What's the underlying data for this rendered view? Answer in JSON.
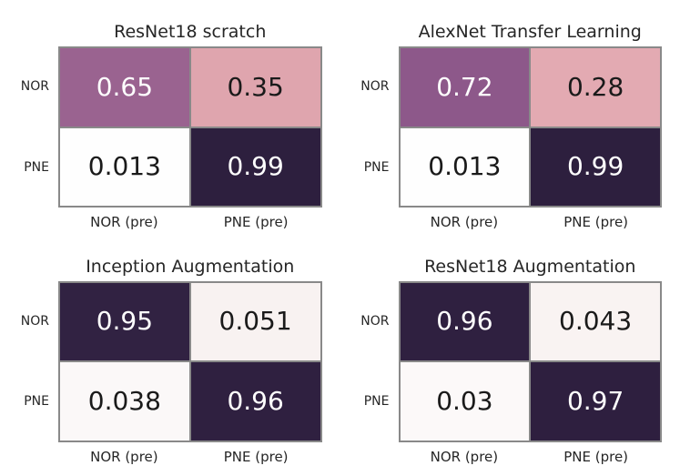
{
  "figure": {
    "background": "#ffffff",
    "grid_color": "#898989",
    "label_color": "#262626"
  },
  "chart_data": [
    {
      "type": "heatmap",
      "title": "ResNet18 scratch",
      "row_labels": [
        "NOR",
        "PNE"
      ],
      "col_labels": [
        "NOR (pre)",
        "PNE (pre)"
      ],
      "values": [
        [
          0.65,
          0.35
        ],
        [
          0.013,
          0.99
        ]
      ],
      "cells": [
        [
          {
            "label": "0.65",
            "bg": "#9a6390",
            "fg": "#ffffff"
          },
          {
            "label": "0.35",
            "bg": "#dfa5ae",
            "fg": "#1a1a1a"
          }
        ],
        [
          {
            "label": "0.013",
            "bg": "#fefefe",
            "fg": "#1a1a1a"
          },
          {
            "label": "0.99",
            "bg": "#2d1f3e",
            "fg": "#ffffff"
          }
        ]
      ]
    },
    {
      "type": "heatmap",
      "title": "AlexNet Transfer Learning",
      "row_labels": [
        "NOR",
        "PNE"
      ],
      "col_labels": [
        "NOR (pre)",
        "PNE (pre)"
      ],
      "values": [
        [
          0.72,
          0.28
        ],
        [
          0.013,
          0.99
        ]
      ],
      "cells": [
        [
          {
            "label": "0.72",
            "bg": "#8d588a",
            "fg": "#ffffff"
          },
          {
            "label": "0.28",
            "bg": "#e3aab2",
            "fg": "#1a1a1a"
          }
        ],
        [
          {
            "label": "0.013",
            "bg": "#fefefe",
            "fg": "#1a1a1a"
          },
          {
            "label": "0.99",
            "bg": "#2d1f3e",
            "fg": "#ffffff"
          }
        ]
      ]
    },
    {
      "type": "heatmap",
      "title": "Inception Augmentation",
      "row_labels": [
        "NOR",
        "PNE"
      ],
      "col_labels": [
        "NOR (pre)",
        "PNE (pre)"
      ],
      "values": [
        [
          0.95,
          0.051
        ],
        [
          0.038,
          0.96
        ]
      ],
      "cells": [
        [
          {
            "label": "0.95",
            "bg": "#312242",
            "fg": "#ffffff"
          },
          {
            "label": "0.051",
            "bg": "#f8f2f1",
            "fg": "#1a1a1a"
          }
        ],
        [
          {
            "label": "0.038",
            "bg": "#fbf8f8",
            "fg": "#1a1a1a"
          },
          {
            "label": "0.96",
            "bg": "#2f2040",
            "fg": "#ffffff"
          }
        ]
      ]
    },
    {
      "type": "heatmap",
      "title": "ResNet18 Augmentation",
      "row_labels": [
        "NOR",
        "PNE"
      ],
      "col_labels": [
        "NOR (pre)",
        "PNE (pre)"
      ],
      "values": [
        [
          0.96,
          0.043
        ],
        [
          0.03,
          0.97
        ]
      ],
      "cells": [
        [
          {
            "label": "0.96",
            "bg": "#2f2040",
            "fg": "#ffffff"
          },
          {
            "label": "0.043",
            "bg": "#f9f3f2",
            "fg": "#1a1a1a"
          }
        ],
        [
          {
            "label": "0.03",
            "bg": "#fcf9f9",
            "fg": "#1a1a1a"
          },
          {
            "label": "0.97",
            "bg": "#2e1f3f",
            "fg": "#ffffff"
          }
        ]
      ]
    }
  ]
}
